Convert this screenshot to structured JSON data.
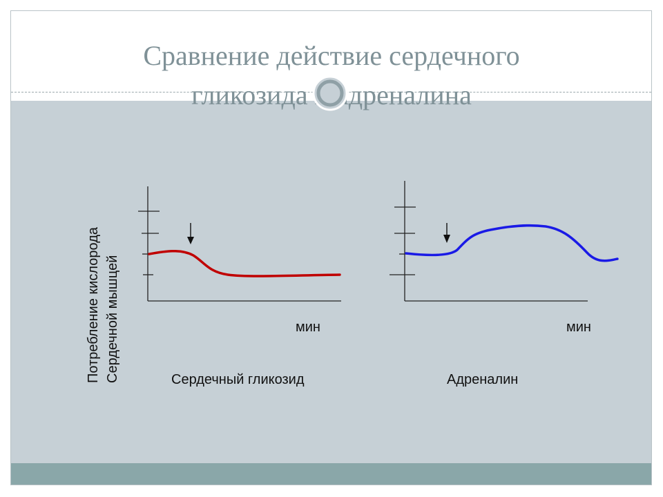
{
  "slide": {
    "title_line1": "Сравнение действие сердечного",
    "title_line2": "гликозида и адреналина"
  },
  "diagram": {
    "y_axis_label_line1": "Потребление кислорода",
    "y_axis_label_line2": "Сердечной мышцей",
    "panels": [
      {
        "caption": "Сердечный гликозид",
        "x_unit": "мин",
        "curve_color": "#c00000"
      },
      {
        "caption": "Адреналин",
        "x_unit": "мин",
        "curve_color": "#1a1ae6"
      }
    ]
  },
  "colors": {
    "title": "#7f9197",
    "content_panel": "#c6d0d6",
    "bottom_band": "#8aa7a9"
  }
}
